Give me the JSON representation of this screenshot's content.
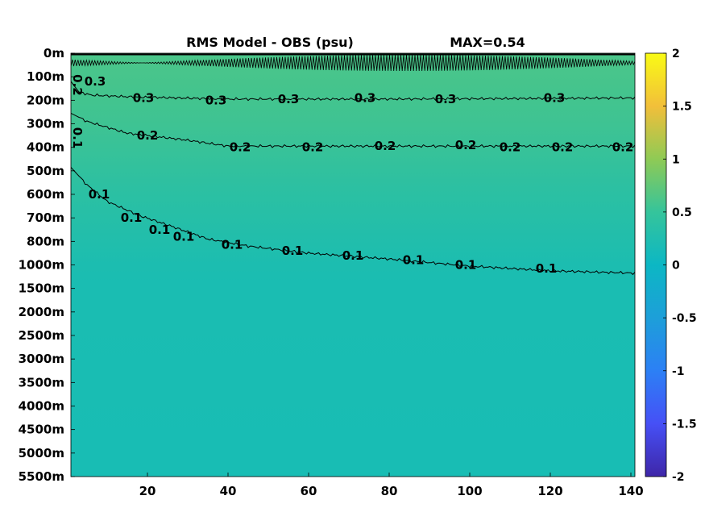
{
  "chart_data": {
    "type": "heatmap",
    "title": "RMS Model - OBS (psu)",
    "max_label": "MAX=0.54",
    "xlabel": "",
    "ylabel": "",
    "x_ticks": [
      20,
      40,
      60,
      80,
      100,
      120,
      140
    ],
    "y_tick_labels": [
      "0m",
      "100m",
      "200m",
      "300m",
      "400m",
      "500m",
      "600m",
      "700m",
      "800m",
      "1000m",
      "1500m",
      "2000m",
      "2500m",
      "3000m",
      "3500m",
      "4000m",
      "4500m",
      "5000m",
      "5500m"
    ],
    "xlim": [
      1,
      141
    ],
    "colorbar": {
      "range": [
        -2,
        2
      ],
      "ticks": [
        "2",
        "1.5",
        "1",
        "0.5",
        "0",
        "-0.5",
        "-1",
        "-1.5",
        "-2"
      ],
      "colormap": "parula"
    },
    "contours": [
      {
        "level": 0.3,
        "label": "0.3",
        "y_depth_index": [
          [
            1,
            1.2
          ],
          [
            3,
            1.65
          ],
          [
            6,
            1.78
          ],
          [
            15,
            1.85
          ],
          [
            40,
            1.95
          ],
          [
            80,
            1.95
          ],
          [
            120,
            1.92
          ],
          [
            141,
            1.9
          ]
        ]
      },
      {
        "level": 0.2,
        "label": "0.2",
        "y_depth_index": [
          [
            1,
            2.55
          ],
          [
            5,
            2.9
          ],
          [
            15,
            3.4
          ],
          [
            30,
            3.7
          ],
          [
            40,
            3.95
          ],
          [
            60,
            3.95
          ],
          [
            100,
            3.95
          ],
          [
            141,
            3.95
          ]
        ]
      },
      {
        "level": 0.1,
        "label": "0.1",
        "y_depth_index": [
          [
            1,
            4.85
          ],
          [
            5,
            5.6
          ],
          [
            10,
            6.3
          ],
          [
            18,
            6.9
          ],
          [
            25,
            7.3
          ],
          [
            35,
            7.9
          ],
          [
            45,
            8.2
          ],
          [
            60,
            8.5
          ],
          [
            80,
            8.75
          ],
          [
            100,
            9.05
          ],
          [
            120,
            9.25
          ],
          [
            141,
            9.35
          ]
        ]
      }
    ],
    "contour_labels": [
      {
        "text": "0.3",
        "x": 7,
        "depth_index": 1.2
      },
      {
        "text": "0.3",
        "x": 19,
        "depth_index": 1.9
      },
      {
        "text": "0.3",
        "x": 37,
        "depth_index": 2.0
      },
      {
        "text": "0.3",
        "x": 55,
        "depth_index": 1.95
      },
      {
        "text": "0.3",
        "x": 74,
        "depth_index": 1.9
      },
      {
        "text": "0.3",
        "x": 94,
        "depth_index": 1.95
      },
      {
        "text": "0.3",
        "x": 121,
        "depth_index": 1.9
      },
      {
        "text": "0.2",
        "x": 20,
        "depth_index": 3.5
      },
      {
        "text": "0.2",
        "x": 43,
        "depth_index": 4.0
      },
      {
        "text": "0.2",
        "x": 61,
        "depth_index": 4.0
      },
      {
        "text": "0.2",
        "x": 79,
        "depth_index": 3.95
      },
      {
        "text": "0.2",
        "x": 99,
        "depth_index": 3.9
      },
      {
        "text": "0.2",
        "x": 110,
        "depth_index": 4.0
      },
      {
        "text": "0.2",
        "x": 123,
        "depth_index": 4.0
      },
      {
        "text": "0.2",
        "x": 138,
        "depth_index": 4.0
      },
      {
        "text": "0.1",
        "x": 8,
        "depth_index": 6.0
      },
      {
        "text": "0.1",
        "x": 16,
        "depth_index": 7.0
      },
      {
        "text": "0.1",
        "x": 23,
        "depth_index": 7.5
      },
      {
        "text": "0.1",
        "x": 29,
        "depth_index": 7.8
      },
      {
        "text": "0.1",
        "x": 41,
        "depth_index": 8.15
      },
      {
        "text": "0.1",
        "x": 56,
        "depth_index": 8.4
      },
      {
        "text": "0.1",
        "x": 71,
        "depth_index": 8.6
      },
      {
        "text": "0.1",
        "x": 86,
        "depth_index": 8.8
      },
      {
        "text": "0.1",
        "x": 99,
        "depth_index": 9.0
      },
      {
        "text": "0.1",
        "x": 119,
        "depth_index": 9.15
      }
    ],
    "edge_labels": [
      {
        "text": "0.2",
        "x": 1,
        "depth_index": 1.35,
        "rotate": 90
      },
      {
        "text": "0.1",
        "x": 1,
        "depth_index": 3.6,
        "rotate": 90
      }
    ]
  }
}
